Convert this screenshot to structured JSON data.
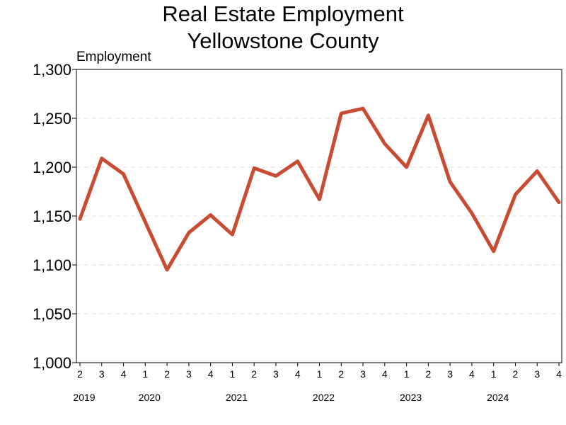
{
  "colors": {
    "series": "#c84b32",
    "axis": "#000000",
    "grid": "#dddddd"
  },
  "chart_data": {
    "type": "line",
    "title": [
      "Real Estate Employment",
      "Yellowstone County"
    ],
    "ylabel": "Employment",
    "xlabel": "",
    "ylim": [
      1000,
      1300
    ],
    "yticks": [
      1000,
      1050,
      1100,
      1150,
      1200,
      1250,
      1300
    ],
    "ytick_labels": [
      "1,000",
      "1,050",
      "1,100",
      "1,150",
      "1,200",
      "1,250",
      "1,300"
    ],
    "grid": "horizontal-dashed",
    "quarter_labels": [
      "2",
      "3",
      "4",
      "1",
      "2",
      "3",
      "4",
      "1",
      "2",
      "3",
      "4",
      "1",
      "2",
      "3",
      "4",
      "1",
      "2",
      "3",
      "4",
      "1",
      "2",
      "3",
      "4"
    ],
    "years": [
      {
        "label": "2019",
        "index": 0
      },
      {
        "label": "2020",
        "index": 3
      },
      {
        "label": "2021",
        "index": 7
      },
      {
        "label": "2022",
        "index": 11
      },
      {
        "label": "2023",
        "index": 15
      },
      {
        "label": "2024",
        "index": 19
      }
    ],
    "series": [
      {
        "values": [
          1147,
          1209,
          1193,
          1144,
          1095,
          1133,
          1151,
          1131,
          1199,
          1191,
          1206,
          1167,
          1255,
          1260,
          1224,
          1200,
          1253,
          1185,
          1153,
          1114,
          1172,
          1196,
          1164
        ]
      }
    ]
  }
}
